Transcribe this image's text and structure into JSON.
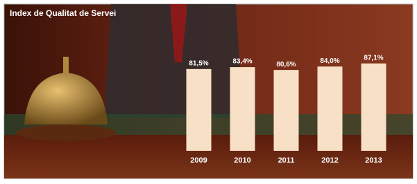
{
  "chart_data": {
    "type": "bar",
    "title": "Index de Qualitat de Servei",
    "categories": [
      "2009",
      "2010",
      "2011",
      "2012",
      "2013"
    ],
    "values": [
      81.5,
      83.4,
      80.6,
      84.0,
      87.1
    ],
    "value_labels": [
      "81,5%",
      "83,4%",
      "80,6%",
      "84,0%",
      "87,1%"
    ],
    "color": "#f7e0c6",
    "ylim": [
      0,
      100
    ]
  }
}
